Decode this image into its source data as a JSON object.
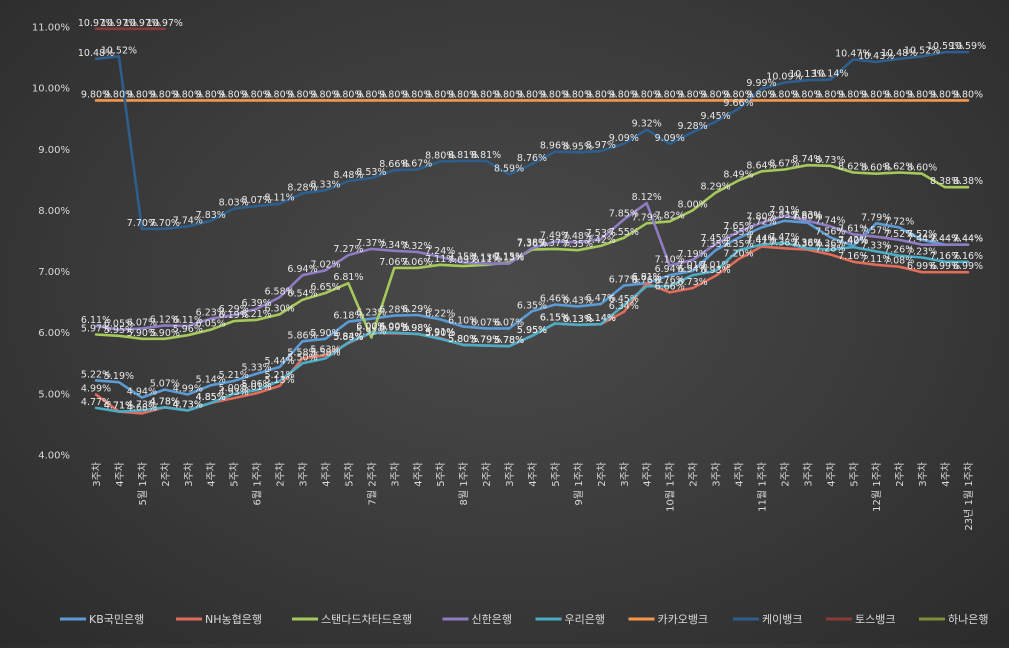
{
  "chart_data": {
    "type": "line",
    "title": "",
    "xlabel": "",
    "ylabel": "",
    "ylim": [
      4.0,
      11.0
    ],
    "yticks": [
      "4.00%",
      "5.00%",
      "6.00%",
      "7.00%",
      "8.00%",
      "9.00%",
      "10.00%",
      "11.00%"
    ],
    "grid": false,
    "legend_position": "bottom",
    "categories": [
      "3주차",
      "4주차",
      "5월 1주차",
      "2주차",
      "3주차",
      "4주차",
      "5주차",
      "6월 1주차",
      "2주차",
      "3주차",
      "4주차",
      "5주차",
      "7월 2주차",
      "3주차",
      "4주차",
      "5주차",
      "8월 1주차",
      "2주차",
      "3주차",
      "4주차",
      "5주차",
      "9월 1주차",
      "2주차",
      "3주차",
      "4주차",
      "10월 1주차",
      "2주차",
      "3주차",
      "4주차",
      "11월 1주차",
      "2주차",
      "3주차",
      "4주차",
      "5주차",
      "12월 1주차",
      "2주차",
      "3주차",
      "4주차",
      "23년 1월 1주차"
    ],
    "series": [
      {
        "name": "KB국민은행",
        "color": "#5b9bd5",
        "values": [
          5.22,
          5.19,
          4.94,
          5.07,
          4.99,
          5.14,
          5.21,
          5.33,
          5.44,
          5.86,
          5.9,
          6.18,
          6.23,
          6.28,
          6.29,
          6.22,
          6.1,
          6.07,
          6.07,
          6.35,
          6.46,
          6.43,
          6.47,
          6.77,
          6.81,
          6.94,
          7.01,
          7.35,
          7.55,
          7.72,
          7.83,
          7.8,
          7.56,
          7.42,
          7.79,
          7.72,
          7.52,
          7.44,
          7.44
        ]
      },
      {
        "name": "NH농협은행",
        "color": "#e06c5a",
        "values": [
          4.99,
          4.71,
          4.68,
          4.78,
          4.73,
          4.85,
          4.93,
          5.01,
          5.13,
          5.58,
          5.63,
          5.83,
          6.0,
          5.99,
          5.98,
          5.91,
          5.8,
          5.79,
          5.78,
          5.95,
          6.15,
          6.13,
          6.14,
          6.34,
          6.81,
          6.66,
          6.73,
          6.93,
          7.2,
          7.41,
          7.38,
          7.36,
          7.28,
          7.16,
          7.11,
          7.08,
          6.99,
          6.99,
          6.99
        ]
      },
      {
        "name": "스탠다드차타드은행",
        "color": "#a5c85a",
        "values": [
          5.97,
          5.95,
          5.9,
          5.9,
          5.96,
          6.05,
          6.19,
          6.21,
          6.3,
          6.54,
          6.65,
          6.81,
          5.92,
          7.06,
          7.06,
          7.11,
          7.09,
          7.11,
          7.15,
          7.36,
          7.37,
          7.35,
          7.42,
          7.55,
          7.79,
          7.82,
          8.0,
          8.29,
          8.49,
          8.64,
          8.67,
          8.74,
          8.73,
          8.62,
          8.6,
          8.62,
          8.6,
          8.38,
          8.38
        ]
      },
      {
        "name": "신한은행",
        "color": "#8e7cc3",
        "values": [
          6.11,
          6.05,
          6.07,
          6.12,
          6.11,
          6.23,
          6.29,
          6.39,
          6.58,
          6.94,
          7.02,
          7.27,
          7.37,
          7.34,
          7.32,
          7.24,
          7.15,
          7.13,
          7.13,
          7.38,
          7.49,
          7.48,
          7.53,
          7.85,
          8.12,
          7.1,
          7.19,
          7.45,
          7.65,
          7.8,
          7.91,
          7.83,
          7.74,
          7.61,
          7.57,
          7.52,
          7.44,
          7.44,
          7.44
        ]
      },
      {
        "name": "우리은행",
        "color": "#4bacc6",
        "values": [
          4.77,
          4.71,
          4.73,
          4.78,
          4.73,
          4.85,
          5.0,
          5.06,
          5.21,
          5.5,
          5.58,
          5.84,
          6.0,
          6.0,
          5.98,
          5.9,
          5.8,
          5.79,
          5.78,
          5.95,
          6.15,
          6.13,
          6.14,
          6.45,
          6.76,
          6.76,
          6.94,
          7.01,
          7.35,
          7.44,
          7.47,
          7.38,
          7.36,
          7.4,
          7.33,
          7.26,
          7.23,
          7.16,
          7.16
        ]
      },
      {
        "name": "카카오뱅크",
        "color": "#f79646",
        "values": [
          9.8,
          9.8,
          9.8,
          9.8,
          9.8,
          9.8,
          9.8,
          9.8,
          9.8,
          9.8,
          9.8,
          9.8,
          9.8,
          9.8,
          9.8,
          9.8,
          9.8,
          9.8,
          9.8,
          9.8,
          9.8,
          9.8,
          9.8,
          9.8,
          9.8,
          9.8,
          9.8,
          9.8,
          9.8,
          9.8,
          9.8,
          9.8,
          9.8,
          9.8,
          9.8,
          9.8,
          9.8,
          9.8,
          9.8
        ]
      },
      {
        "name": "케이뱅크",
        "color": "#2e5f8c",
        "values": [
          10.48,
          10.52,
          7.7,
          7.7,
          7.74,
          7.83,
          8.03,
          8.07,
          8.11,
          8.28,
          8.33,
          8.48,
          8.53,
          8.66,
          8.67,
          8.8,
          8.81,
          8.81,
          8.59,
          8.76,
          8.96,
          8.95,
          8.97,
          9.09,
          9.32,
          9.09,
          9.28,
          9.45,
          9.66,
          9.99,
          10.09,
          10.13,
          10.14,
          10.47,
          10.43,
          10.48,
          10.52,
          10.59,
          10.59
        ]
      },
      {
        "name": "토스뱅크",
        "color": "#8b3a3a",
        "values": [
          10.97,
          10.97,
          10.97,
          10.97,
          null,
          null,
          null,
          null,
          null,
          null,
          null,
          null,
          null,
          null,
          null,
          null,
          null,
          null,
          null,
          null,
          null,
          null,
          null,
          null,
          null,
          null,
          null,
          null,
          null,
          null,
          null,
          null,
          null,
          null,
          null,
          null,
          null,
          null,
          null
        ]
      },
      {
        "name": "하나은행",
        "color": "#7f8c3a",
        "values": [
          null,
          null,
          null,
          null,
          null,
          null,
          null,
          null,
          null,
          null,
          null,
          null,
          null,
          null,
          null,
          null,
          null,
          null,
          null,
          null,
          null,
          null,
          null,
          null,
          null,
          null,
          null,
          null,
          null,
          null,
          null,
          null,
          null,
          null,
          null,
          null,
          null,
          null,
          null
        ]
      }
    ]
  }
}
